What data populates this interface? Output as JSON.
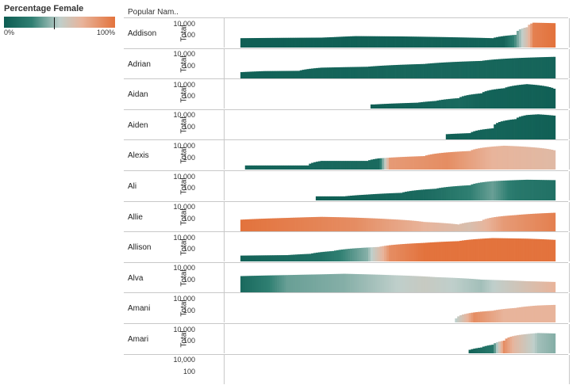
{
  "chart_data": {
    "type": "area",
    "legend": {
      "title": "Percentage Female",
      "min_label": "0%",
      "max_label": "100%",
      "marker_value": 0.45,
      "colors": [
        "#0d5c52",
        "#2f7f72",
        "#bfcfcb",
        "#e8b49b",
        "#e3733d"
      ]
    },
    "column_header": "Popular Nam..",
    "axis_title": "Total",
    "y_scale": "log",
    "y_ticks": [
      "10,000",
      "100"
    ],
    "ylim": [
      1,
      30000
    ],
    "x_start": 1880,
    "x_end": 2017,
    "series": [
      {
        "name": "Addison",
        "profile": [
          [
            1880,
            40
          ],
          [
            1895,
            45
          ],
          [
            1915,
            50
          ],
          [
            1920,
            60
          ],
          [
            1930,
            90
          ],
          [
            1950,
            80
          ],
          [
            1970,
            60
          ],
          [
            1990,
            40
          ],
          [
            2000,
            150
          ],
          [
            2005,
            3000
          ],
          [
            2008,
            18000
          ],
          [
            2017,
            15000
          ]
        ],
        "female": [
          [
            1880,
            0.02
          ],
          [
            1995,
            0.05
          ],
          [
            2000,
            0.3
          ],
          [
            2005,
            0.65
          ],
          [
            2008,
            0.95
          ],
          [
            2017,
            1.0
          ]
        ]
      },
      {
        "name": "Adrian",
        "profile": [
          [
            1880,
            12
          ],
          [
            1890,
            18
          ],
          [
            1905,
            20
          ],
          [
            1915,
            70
          ],
          [
            1935,
            100
          ],
          [
            1960,
            300
          ],
          [
            1985,
            1000
          ],
          [
            2000,
            3000
          ],
          [
            2017,
            5000
          ]
        ],
        "female": [
          [
            1880,
            0.04
          ],
          [
            1970,
            0.08
          ],
          [
            2017,
            0.06
          ]
        ]
      },
      {
        "name": "Aidan",
        "profile": [
          [
            1937,
            5
          ],
          [
            1938,
            5
          ],
          [
            1957,
            10
          ],
          [
            1965,
            20
          ],
          [
            1975,
            60
          ],
          [
            1985,
            400
          ],
          [
            1995,
            3000
          ],
          [
            2005,
            15000
          ],
          [
            2010,
            10000
          ],
          [
            2017,
            2500
          ]
        ],
        "female": [
          [
            1937,
            0.02
          ],
          [
            1955,
            0.04
          ],
          [
            1975,
            0.1
          ],
          [
            1985,
            0.05
          ],
          [
            2017,
            0.03
          ]
        ]
      },
      {
        "name": "Aiden",
        "profile": [
          [
            1970,
            8
          ],
          [
            1980,
            12
          ],
          [
            1990,
            80
          ],
          [
            2000,
            3000
          ],
          [
            2005,
            15000
          ],
          [
            2010,
            20000
          ],
          [
            2017,
            12000
          ]
        ],
        "female": [
          [
            1970,
            0.03
          ],
          [
            1990,
            0.06
          ],
          [
            2017,
            0.03
          ]
        ]
      },
      {
        "name": "Alexis",
        "profile": [
          [
            1882,
            5
          ],
          [
            1883,
            5
          ],
          [
            1888,
            5
          ],
          [
            1889,
            5
          ],
          [
            1895,
            5
          ],
          [
            1896,
            5
          ],
          [
            1908,
            5
          ],
          [
            1909,
            5
          ],
          [
            1910,
            10
          ],
          [
            1915,
            30
          ],
          [
            1935,
            30
          ],
          [
            1940,
            80
          ],
          [
            1960,
            200
          ],
          [
            1980,
            1500
          ],
          [
            1995,
            12000
          ],
          [
            2000,
            10000
          ],
          [
            2017,
            2000
          ]
        ],
        "female": [
          [
            1880,
            0.05
          ],
          [
            1940,
            0.1
          ],
          [
            1945,
            0.85
          ],
          [
            1970,
            0.9
          ],
          [
            1990,
            0.75
          ],
          [
            2017,
            0.7
          ]
        ]
      },
      {
        "name": "Ali",
        "profile": [
          [
            1913,
            5
          ],
          [
            1914,
            5
          ],
          [
            1925,
            5
          ],
          [
            1935,
            10
          ],
          [
            1950,
            20
          ],
          [
            1965,
            100
          ],
          [
            1980,
            400
          ],
          [
            1990,
            2000
          ],
          [
            2005,
            3500
          ],
          [
            2017,
            3000
          ]
        ],
        "female": [
          [
            1913,
            0.02
          ],
          [
            1960,
            0.1
          ],
          [
            1980,
            0.25
          ],
          [
            1990,
            0.35
          ],
          [
            2000,
            0.2
          ],
          [
            2017,
            0.15
          ]
        ]
      },
      {
        "name": "Allie",
        "profile": [
          [
            1880,
            100
          ],
          [
            1900,
            200
          ],
          [
            1915,
            300
          ],
          [
            1925,
            250
          ],
          [
            1945,
            120
          ],
          [
            1960,
            40
          ],
          [
            1975,
            15
          ],
          [
            1985,
            60
          ],
          [
            2000,
            600
          ],
          [
            2017,
            1500
          ]
        ],
        "female": [
          [
            1880,
            1.0
          ],
          [
            1930,
            0.9
          ],
          [
            1960,
            0.75
          ],
          [
            1980,
            0.65
          ],
          [
            1995,
            0.85
          ],
          [
            2017,
            0.95
          ]
        ]
      },
      {
        "name": "Allison",
        "profile": [
          [
            1880,
            10
          ],
          [
            1900,
            12
          ],
          [
            1910,
            20
          ],
          [
            1920,
            60
          ],
          [
            1940,
            300
          ],
          [
            1960,
            1500
          ],
          [
            1975,
            3000
          ],
          [
            1990,
            10000
          ],
          [
            2005,
            8000
          ],
          [
            2017,
            5000
          ]
        ],
        "female": [
          [
            1880,
            0.05
          ],
          [
            1915,
            0.15
          ],
          [
            1935,
            0.4
          ],
          [
            1945,
            0.9
          ],
          [
            1960,
            1.0
          ],
          [
            2017,
            1.0
          ]
        ]
      },
      {
        "name": "Alva",
        "profile": [
          [
            1880,
            600
          ],
          [
            1900,
            900
          ],
          [
            1915,
            1200
          ],
          [
            1925,
            1500
          ],
          [
            1945,
            900
          ],
          [
            1965,
            400
          ],
          [
            1985,
            150
          ],
          [
            2005,
            80
          ],
          [
            2017,
            60
          ]
        ],
        "female": [
          [
            1880,
            0.1
          ],
          [
            1900,
            0.35
          ],
          [
            1925,
            0.4
          ],
          [
            1960,
            0.55
          ],
          [
            1985,
            0.45
          ],
          [
            2017,
            0.75
          ]
        ]
      },
      {
        "name": "Amani",
        "profile": [
          [
            1974,
            5
          ],
          [
            1980,
            40
          ],
          [
            1990,
            100
          ],
          [
            2000,
            300
          ],
          [
            2010,
            800
          ],
          [
            2017,
            1000
          ]
        ],
        "female": [
          [
            1974,
            0.5
          ],
          [
            1982,
            0.9
          ],
          [
            1995,
            0.75
          ],
          [
            2017,
            0.75
          ]
        ]
      },
      {
        "name": "Amari",
        "profile": [
          [
            1980,
            4
          ],
          [
            1985,
            10
          ],
          [
            1990,
            30
          ],
          [
            1995,
            150
          ],
          [
            2005,
            2000
          ],
          [
            2010,
            3000
          ],
          [
            2017,
            2500
          ]
        ],
        "female": [
          [
            1980,
            0.05
          ],
          [
            1990,
            0.2
          ],
          [
            1995,
            0.9
          ],
          [
            2000,
            0.7
          ],
          [
            2010,
            0.45
          ],
          [
            2017,
            0.4
          ]
        ]
      },
      {
        "name": "",
        "profile": [],
        "female": []
      }
    ]
  }
}
